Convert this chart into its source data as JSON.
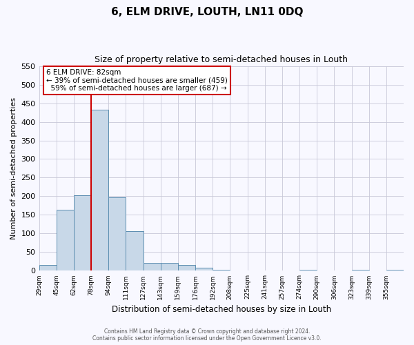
{
  "title": "6, ELM DRIVE, LOUTH, LN11 0DQ",
  "subtitle": "Size of property relative to semi-detached houses in Louth",
  "xlabel": "Distribution of semi-detached houses by size in Louth",
  "ylabel": "Number of semi-detached properties",
  "footer_line1": "Contains HM Land Registry data © Crown copyright and database right 2024.",
  "footer_line2": "Contains public sector information licensed under the Open Government Licence v3.0.",
  "bin_labels": [
    "29sqm",
    "45sqm",
    "62sqm",
    "78sqm",
    "94sqm",
    "111sqm",
    "127sqm",
    "143sqm",
    "159sqm",
    "176sqm",
    "192sqm",
    "208sqm",
    "225sqm",
    "241sqm",
    "257sqm",
    "274sqm",
    "290sqm",
    "306sqm",
    "323sqm",
    "339sqm",
    "355sqm"
  ],
  "bar_heights": [
    15,
    163,
    203,
    432,
    197,
    107,
    22,
    21,
    16,
    8,
    2,
    0,
    0,
    0,
    0,
    2,
    0,
    0,
    2,
    0,
    2
  ],
  "bar_color": "#c8d8e8",
  "bar_edge_color": "#5b8db0",
  "property_bin_index": 3,
  "vline_color": "#cc0000",
  "vline_label": "6 ELM DRIVE: 82sqm",
  "smaller_pct": 39,
  "smaller_count": 459,
  "larger_pct": 59,
  "larger_count": 687,
  "ylim": [
    0,
    550
  ],
  "yticks": [
    0,
    50,
    100,
    150,
    200,
    250,
    300,
    350,
    400,
    450,
    500,
    550
  ],
  "background_color": "#f8f8ff",
  "grid_color": "#c8c8d8",
  "annotation_box_color": "#ffffff",
  "annotation_box_edge_color": "#cc0000"
}
